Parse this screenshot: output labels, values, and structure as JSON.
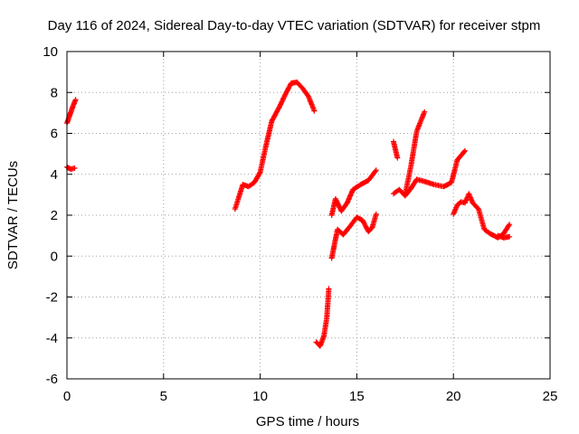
{
  "chart_data": {
    "type": "scatter",
    "title": "Day 116 of 2024, Sidereal Day-to-day VTEC variation (SDTVAR) for receiver stpm",
    "xlabel": "GPS time / hours",
    "ylabel": "SDTVAR / TECUs",
    "xlim": [
      0,
      25
    ],
    "ylim": [
      -6,
      10
    ],
    "x_ticks": [
      0,
      5,
      10,
      15,
      20,
      25
    ],
    "y_ticks": [
      -6,
      -4,
      -2,
      0,
      2,
      4,
      6,
      8,
      10
    ],
    "grid": true,
    "marker": "+",
    "color": "#ff0000",
    "series": [
      {
        "name": "seg1",
        "points": [
          [
            0.0,
            6.5
          ],
          [
            0.15,
            6.9
          ],
          [
            0.3,
            7.3
          ],
          [
            0.45,
            7.65
          ]
        ]
      },
      {
        "name": "seg2",
        "points": [
          [
            0.0,
            4.35
          ],
          [
            0.2,
            4.25
          ],
          [
            0.4,
            4.3
          ]
        ]
      },
      {
        "name": "seg3",
        "points": [
          [
            8.7,
            2.3
          ],
          [
            8.9,
            2.9
          ],
          [
            9.1,
            3.5
          ],
          [
            9.4,
            3.4
          ],
          [
            9.7,
            3.6
          ],
          [
            10.0,
            4.1
          ],
          [
            10.3,
            5.4
          ],
          [
            10.6,
            6.6
          ],
          [
            11.0,
            7.3
          ],
          [
            11.3,
            7.9
          ],
          [
            11.6,
            8.45
          ],
          [
            11.9,
            8.5
          ],
          [
            12.2,
            8.2
          ],
          [
            12.5,
            7.8
          ],
          [
            12.8,
            7.1
          ]
        ]
      },
      {
        "name": "seg4",
        "points": [
          [
            12.9,
            -4.2
          ],
          [
            13.1,
            -4.4
          ],
          [
            13.3,
            -3.9
          ],
          [
            13.45,
            -3.0
          ],
          [
            13.55,
            -1.6
          ]
        ]
      },
      {
        "name": "seg5",
        "points": [
          [
            13.7,
            -0.1
          ],
          [
            13.85,
            0.6
          ],
          [
            14.0,
            1.3
          ],
          [
            14.3,
            1.05
          ],
          [
            14.6,
            1.4
          ],
          [
            15.0,
            1.9
          ],
          [
            15.3,
            1.75
          ],
          [
            15.6,
            1.2
          ],
          [
            15.8,
            1.4
          ],
          [
            16.0,
            2.05
          ]
        ]
      },
      {
        "name": "seg6",
        "points": [
          [
            13.7,
            2.0
          ],
          [
            13.9,
            2.8
          ],
          [
            14.2,
            2.2
          ],
          [
            14.5,
            2.6
          ],
          [
            14.8,
            3.25
          ],
          [
            15.2,
            3.5
          ],
          [
            15.6,
            3.7
          ],
          [
            16.0,
            4.2
          ]
        ]
      },
      {
        "name": "seg7",
        "points": [
          [
            16.9,
            5.6
          ],
          [
            17.0,
            5.2
          ],
          [
            17.1,
            4.8
          ]
        ]
      },
      {
        "name": "seg8",
        "points": [
          [
            16.9,
            3.05
          ],
          [
            17.2,
            3.25
          ],
          [
            17.5,
            2.95
          ],
          [
            17.8,
            3.3
          ],
          [
            18.1,
            3.75
          ],
          [
            18.5,
            3.65
          ],
          [
            19.0,
            3.5
          ],
          [
            19.5,
            3.4
          ],
          [
            19.9,
            3.6
          ],
          [
            20.2,
            4.7
          ],
          [
            20.6,
            5.15
          ]
        ]
      },
      {
        "name": "seg9",
        "points": [
          [
            17.5,
            3.0
          ],
          [
            17.8,
            4.4
          ],
          [
            18.1,
            6.1
          ],
          [
            18.5,
            7.05
          ]
        ]
      },
      {
        "name": "seg10",
        "points": [
          [
            20.0,
            2.05
          ],
          [
            20.2,
            2.5
          ],
          [
            20.4,
            2.65
          ],
          [
            20.6,
            2.6
          ],
          [
            20.8,
            3.05
          ],
          [
            21.0,
            2.6
          ],
          [
            21.3,
            2.3
          ],
          [
            21.6,
            1.3
          ],
          [
            21.9,
            1.1
          ],
          [
            22.3,
            0.9
          ],
          [
            22.6,
            1.1
          ],
          [
            22.9,
            1.55
          ]
        ]
      },
      {
        "name": "seg11",
        "points": [
          [
            22.3,
            1.0
          ],
          [
            22.6,
            0.9
          ],
          [
            22.9,
            0.95
          ]
        ]
      }
    ]
  }
}
